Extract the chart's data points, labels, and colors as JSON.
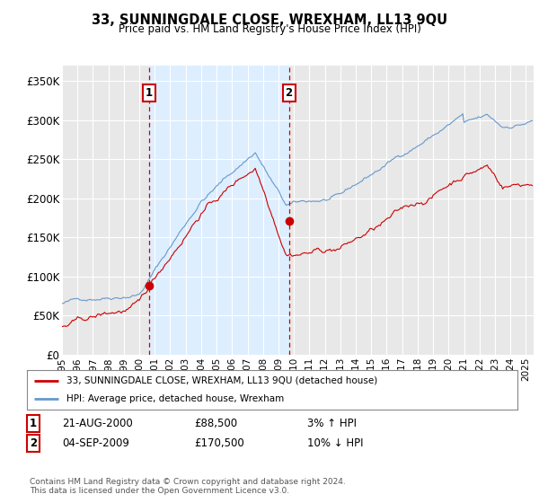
{
  "title": "33, SUNNINGDALE CLOSE, WREXHAM, LL13 9QU",
  "subtitle": "Price paid vs. HM Land Registry's House Price Index (HPI)",
  "ylabel_ticks": [
    "£0",
    "£50K",
    "£100K",
    "£150K",
    "£200K",
    "£250K",
    "£300K",
    "£350K"
  ],
  "ytick_values": [
    0,
    50000,
    100000,
    150000,
    200000,
    250000,
    300000,
    350000
  ],
  "ylim": [
    0,
    370000
  ],
  "xlim_start": 1995.0,
  "xlim_end": 2025.5,
  "background_color": "#ffffff",
  "plot_bg_color": "#e8e8e8",
  "highlight_color": "#ddeeff",
  "grid_color": "#ffffff",
  "purchase1_year": 2000.64,
  "purchase1_price": 88500,
  "purchase2_year": 2009.67,
  "purchase2_price": 170500,
  "annotation1": {
    "date_str": "21-AUG-2000",
    "price": "£88,500",
    "hpi": "3% ↑ HPI"
  },
  "annotation2": {
    "date_str": "04-SEP-2009",
    "price": "£170,500",
    "hpi": "10% ↓ HPI"
  },
  "legend_label1": "33, SUNNINGDALE CLOSE, WREXHAM, LL13 9QU (detached house)",
  "legend_label2": "HPI: Average price, detached house, Wrexham",
  "line1_color": "#cc0000",
  "line2_color": "#6699cc",
  "footer": "Contains HM Land Registry data © Crown copyright and database right 2024.\nThis data is licensed under the Open Government Licence v3.0."
}
